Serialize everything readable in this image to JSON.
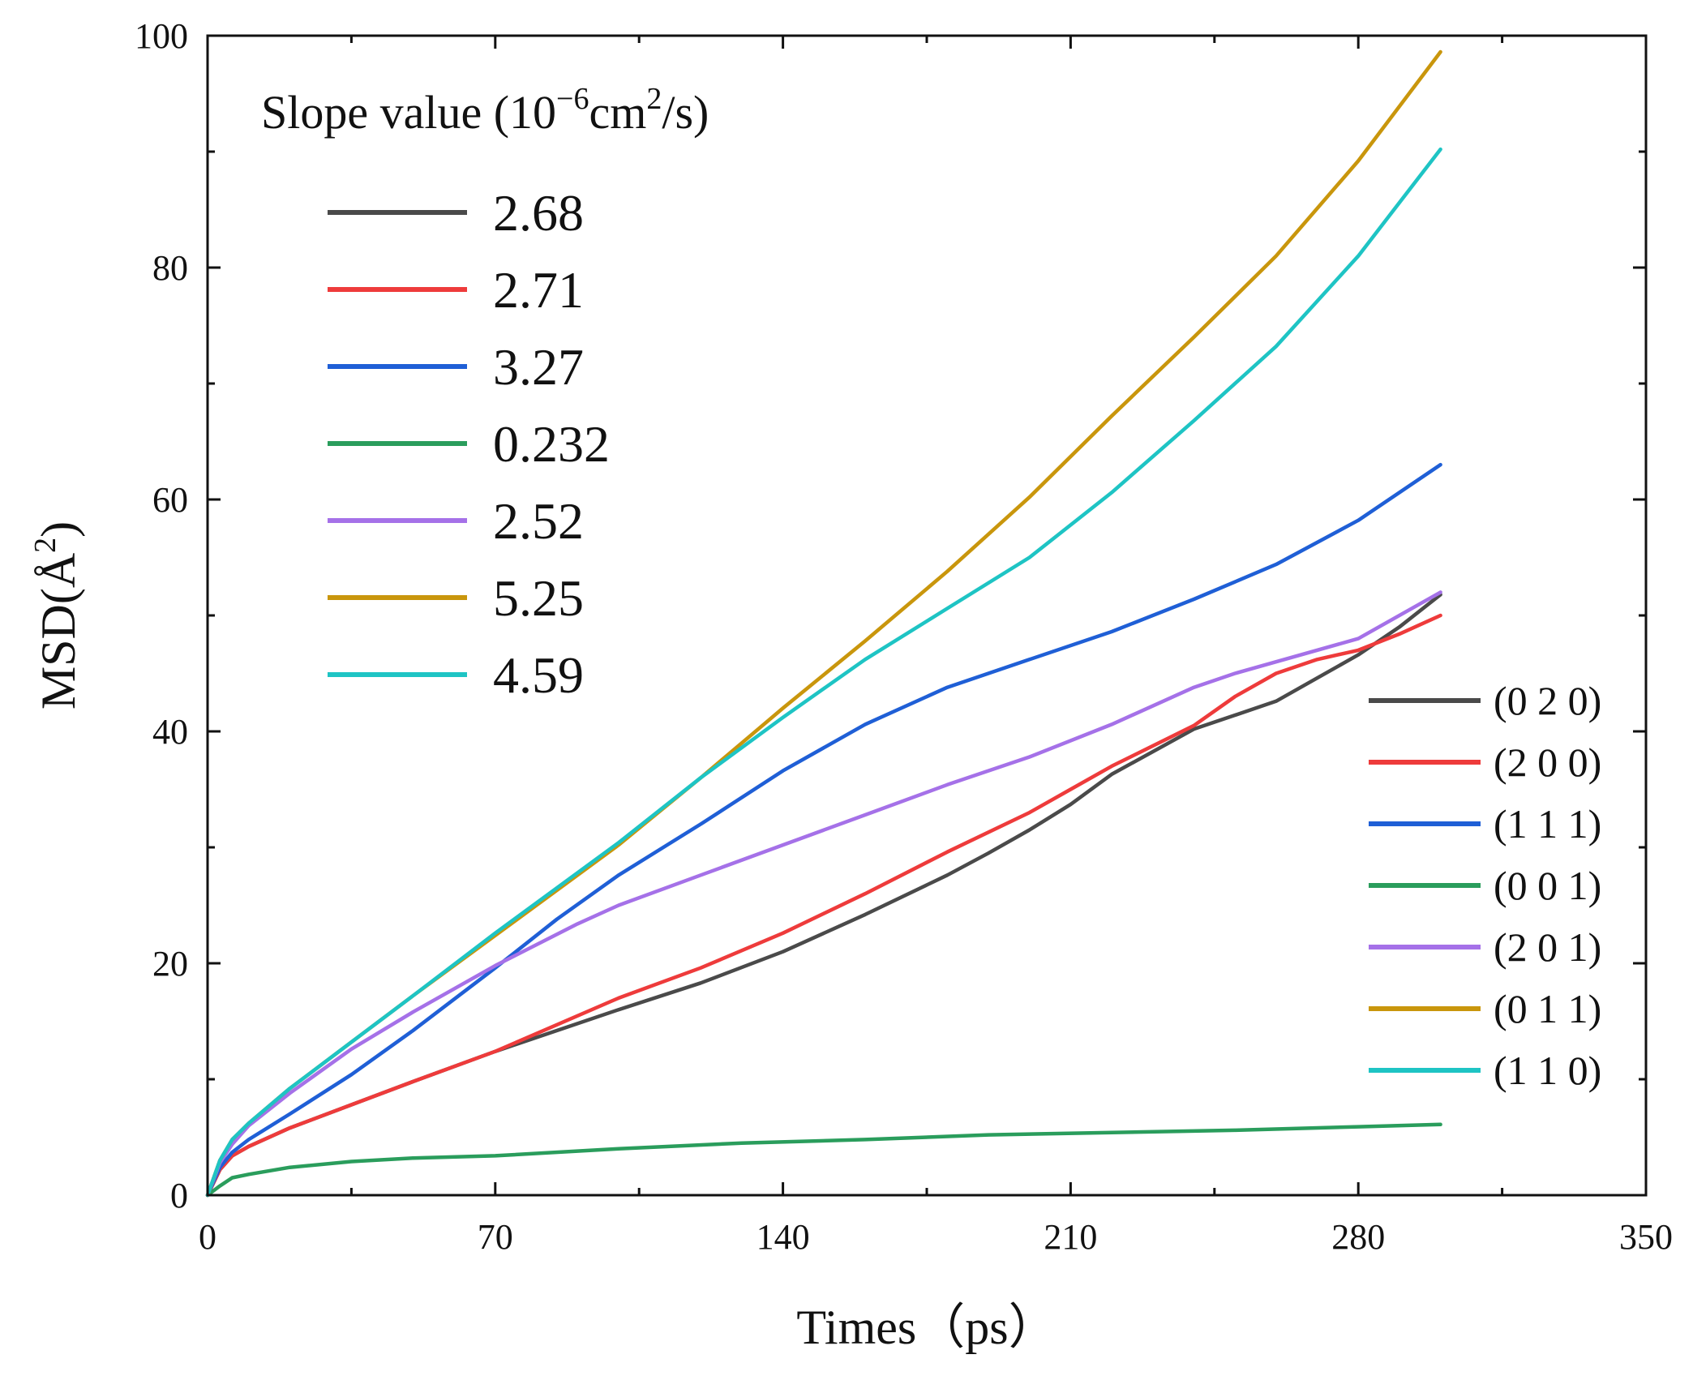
{
  "chart_data": {
    "type": "line",
    "xlabel": "Times（ps）",
    "ylabel_main": "MSD(Å",
    "ylabel_sup": "2",
    "ylabel_close": ")",
    "xlim": [
      0,
      350
    ],
    "ylim": [
      0,
      100
    ],
    "x_ticks": [
      0,
      70,
      140,
      210,
      280,
      350
    ],
    "y_ticks": [
      0,
      20,
      40,
      60,
      80,
      100
    ],
    "slope_legend_title": {
      "prefix": "Slope value (10",
      "exp": "−6",
      "mid": "cm",
      "exp2": "2",
      "suffix": "/s)"
    },
    "series": [
      {
        "name": "(0 2 0)",
        "slope": "2.68",
        "color": "#4a4a4a",
        "x": [
          0,
          3,
          6,
          10,
          20,
          35,
          50,
          70,
          100,
          120,
          140,
          160,
          180,
          190,
          200,
          210,
          220,
          240,
          250,
          260,
          270,
          280,
          290,
          300
        ],
        "y": [
          0,
          2.2,
          3.4,
          4.2,
          5.8,
          7.8,
          9.8,
          12.4,
          16.0,
          18.3,
          21.0,
          24.2,
          27.6,
          29.5,
          31.5,
          33.7,
          36.3,
          40.2,
          41.4,
          42.6,
          44.6,
          46.6,
          49.0,
          51.8
        ]
      },
      {
        "name": "(2 0 0)",
        "slope": "2.71",
        "color": "#ee3b3b",
        "x": [
          0,
          3,
          6,
          10,
          20,
          35,
          50,
          70,
          100,
          120,
          140,
          160,
          180,
          200,
          210,
          220,
          240,
          250,
          260,
          270,
          280,
          290,
          300
        ],
        "y": [
          0,
          2.2,
          3.4,
          4.2,
          5.8,
          7.8,
          9.8,
          12.4,
          17.0,
          19.6,
          22.6,
          26.0,
          29.6,
          33.0,
          35.0,
          37.0,
          40.5,
          43.0,
          45.0,
          46.2,
          47.0,
          48.4,
          50.0
        ]
      },
      {
        "name": "(1 1 1)",
        "slope": "3.27",
        "color": "#1f5fd6",
        "x": [
          0,
          3,
          6,
          10,
          20,
          35,
          50,
          70,
          85,
          100,
          120,
          140,
          160,
          180,
          200,
          220,
          240,
          260,
          280,
          300
        ],
        "y": [
          0,
          2.4,
          3.7,
          4.8,
          7.0,
          10.4,
          14.2,
          19.6,
          23.8,
          27.6,
          32.0,
          36.6,
          40.6,
          43.8,
          46.2,
          48.6,
          51.4,
          54.4,
          58.2,
          63.0
        ]
      },
      {
        "name": "(0 0 1)",
        "slope": "0.232",
        "color": "#2a9d5c",
        "x": [
          0,
          3,
          6,
          10,
          20,
          35,
          50,
          70,
          100,
          130,
          160,
          190,
          220,
          250,
          280,
          300
        ],
        "y": [
          0,
          0.8,
          1.5,
          1.8,
          2.4,
          2.9,
          3.2,
          3.4,
          4.0,
          4.5,
          4.8,
          5.2,
          5.4,
          5.6,
          5.9,
          6.1
        ]
      },
      {
        "name": "(2 0 1)",
        "slope": "2.52",
        "color": "#a571e8",
        "x": [
          0,
          3,
          6,
          10,
          20,
          35,
          50,
          70,
          90,
          100,
          120,
          140,
          160,
          180,
          200,
          220,
          240,
          250,
          260,
          280,
          300
        ],
        "y": [
          0,
          2.8,
          4.4,
          6.0,
          8.8,
          12.6,
          15.8,
          19.8,
          23.4,
          25.0,
          27.6,
          30.2,
          32.8,
          35.4,
          37.8,
          40.6,
          43.8,
          45.0,
          46.0,
          48.0,
          52.0
        ]
      },
      {
        "name": "(0 1 1)",
        "slope": "5.25",
        "color": "#c9960c",
        "x": [
          0,
          3,
          6,
          10,
          20,
          35,
          50,
          70,
          100,
          120,
          140,
          160,
          180,
          200,
          220,
          240,
          260,
          280,
          300
        ],
        "y": [
          0,
          3.0,
          4.8,
          6.2,
          9.2,
          13.2,
          17.2,
          22.4,
          30.2,
          36.0,
          42.0,
          47.8,
          53.8,
          60.2,
          67.2,
          74.0,
          81.0,
          89.2,
          98.6
        ]
      },
      {
        "name": "(1 1 0)",
        "slope": "4.59",
        "color": "#1ec4c4",
        "x": [
          0,
          3,
          6,
          10,
          20,
          35,
          50,
          70,
          100,
          120,
          140,
          160,
          180,
          200,
          220,
          240,
          260,
          280,
          300
        ],
        "y": [
          0,
          3.0,
          4.8,
          6.2,
          9.2,
          13.2,
          17.2,
          22.6,
          30.4,
          36.0,
          41.2,
          46.2,
          50.6,
          55.0,
          60.6,
          66.8,
          73.2,
          81.0,
          90.2
        ]
      }
    ]
  }
}
